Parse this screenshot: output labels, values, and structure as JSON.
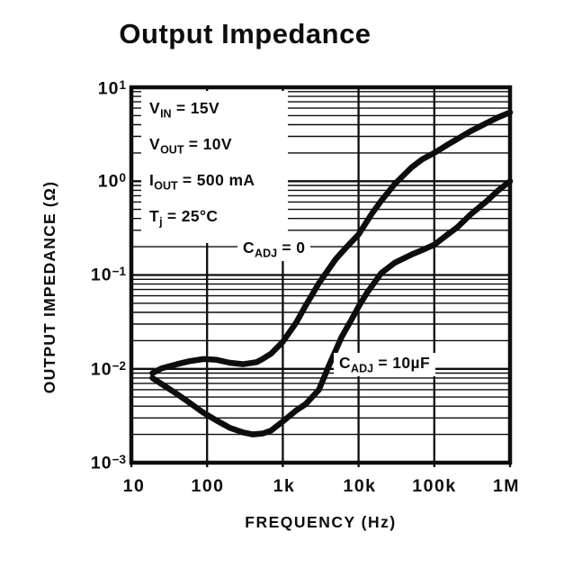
{
  "title": "Output Impedance",
  "colors": {
    "ink": "#0d0d0d",
    "background": "#ffffff"
  },
  "chart_data": {
    "type": "line",
    "title": "Output Impedance",
    "xlabel": "FREQUENCY (Hz)",
    "ylabel": "OUTPUT IMPEDANCE (Ω)",
    "x_axis": {
      "label": "FREQUENCY (Hz)",
      "scale": "log",
      "min": 10,
      "max": 1000000,
      "ticks": [
        {
          "value": 10,
          "label": "10"
        },
        {
          "value": 100,
          "label": "100"
        },
        {
          "value": 1000,
          "label": "1k"
        },
        {
          "value": 10000,
          "label": "10k"
        },
        {
          "value": 100000,
          "label": "100k"
        },
        {
          "value": 1000000,
          "label": "1M"
        }
      ]
    },
    "y_axis": {
      "label": "OUTPUT IMPEDANCE (Ω)",
      "scale": "log",
      "min": 0.001,
      "max": 10,
      "ticks": [
        {
          "value": 10,
          "base": "10",
          "exp": "1"
        },
        {
          "value": 1,
          "base": "10",
          "exp": "0"
        },
        {
          "value": 0.1,
          "base": "10",
          "exp": "−1"
        },
        {
          "value": 0.01,
          "base": "10",
          "exp": "−2"
        },
        {
          "value": 0.001,
          "base": "10",
          "exp": "−3"
        }
      ]
    },
    "grid": {
      "h_minor_lines": true,
      "v_minor_lines": false,
      "legend_position": "none"
    },
    "conditions": [
      {
        "sym": "V",
        "sub": "IN",
        "rest": "= 15V"
      },
      {
        "sym": "V",
        "sub": "OUT",
        "rest": "= 10V"
      },
      {
        "sym": "I",
        "sub": "OUT",
        "rest": "= 500 mA"
      },
      {
        "sym": "T",
        "sub": "j",
        "rest": "= 25°C"
      }
    ],
    "series": [
      {
        "id": "cadj-0",
        "name": "CADJ = 0",
        "label": {
          "sym": "C",
          "sub": "ADJ",
          "rest": "= 0"
        },
        "points": [
          [
            19,
            0.009
          ],
          [
            25,
            0.0101
          ],
          [
            40,
            0.0112
          ],
          [
            60,
            0.0121
          ],
          [
            90,
            0.0127
          ],
          [
            130,
            0.0125
          ],
          [
            200,
            0.0116
          ],
          [
            300,
            0.0112
          ],
          [
            450,
            0.0118
          ],
          [
            520,
            0.0125
          ],
          [
            700,
            0.0145
          ],
          [
            1000,
            0.0194
          ],
          [
            1500,
            0.031
          ],
          [
            2000,
            0.047
          ],
          [
            3000,
            0.082
          ],
          [
            5000,
            0.148
          ],
          [
            7000,
            0.2
          ],
          [
            10000,
            0.27
          ],
          [
            15000,
            0.45
          ],
          [
            20000,
            0.62
          ],
          [
            30000,
            0.93
          ],
          [
            50000,
            1.4
          ],
          [
            70000,
            1.72
          ],
          [
            100000,
            2.0
          ],
          [
            150000,
            2.45
          ],
          [
            200000,
            2.8
          ],
          [
            300000,
            3.4
          ],
          [
            500000,
            4.2
          ],
          [
            700000,
            4.8
          ],
          [
            1000000,
            5.4
          ]
        ]
      },
      {
        "id": "cadj-10uf",
        "name": "CADJ = 10µF",
        "label": {
          "sym": "C",
          "sub": "ADJ",
          "rest": "= 10µF"
        },
        "points": [
          [
            19,
            0.008
          ],
          [
            25,
            0.0069
          ],
          [
            40,
            0.0054
          ],
          [
            60,
            0.0043
          ],
          [
            90,
            0.0034
          ],
          [
            130,
            0.00285
          ],
          [
            200,
            0.00235
          ],
          [
            300,
            0.0021
          ],
          [
            400,
            0.002
          ],
          [
            550,
            0.00205
          ],
          [
            700,
            0.0022
          ],
          [
            1000,
            0.00275
          ],
          [
            1500,
            0.0036
          ],
          [
            2000,
            0.0042
          ],
          [
            3000,
            0.006
          ],
          [
            4000,
            0.0105
          ],
          [
            6000,
            0.022
          ],
          [
            8000,
            0.033
          ],
          [
            10000,
            0.046
          ],
          [
            13000,
            0.065
          ],
          [
            20000,
            0.105
          ],
          [
            30000,
            0.135
          ],
          [
            50000,
            0.165
          ],
          [
            70000,
            0.185
          ],
          [
            100000,
            0.21
          ],
          [
            150000,
            0.27
          ],
          [
            200000,
            0.32
          ],
          [
            300000,
            0.44
          ],
          [
            500000,
            0.62
          ],
          [
            700000,
            0.8
          ],
          [
            1000000,
            1.0
          ]
        ]
      }
    ]
  }
}
